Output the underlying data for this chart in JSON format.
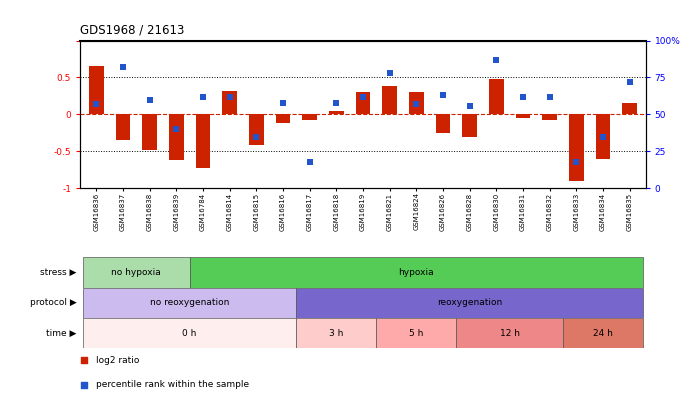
{
  "title": "GDS1968 / 21613",
  "samples": [
    "GSM16836",
    "GSM16837",
    "GSM16838",
    "GSM16839",
    "GSM16784",
    "GSM16814",
    "GSM16815",
    "GSM16816",
    "GSM16817",
    "GSM16818",
    "GSM16819",
    "GSM16821",
    "GSM16824",
    "GSM16826",
    "GSM16828",
    "GSM16830",
    "GSM16831",
    "GSM16832",
    "GSM16833",
    "GSM16834",
    "GSM16835"
  ],
  "log2_ratio": [
    0.65,
    -0.35,
    -0.48,
    -0.62,
    -0.72,
    0.32,
    -0.42,
    -0.12,
    -0.08,
    0.05,
    0.3,
    0.38,
    0.3,
    -0.25,
    -0.3,
    0.48,
    -0.05,
    -0.07,
    -0.9,
    -0.6,
    0.15
  ],
  "percentile_pct": [
    57,
    82,
    60,
    40,
    62,
    62,
    35,
    58,
    18,
    58,
    62,
    78,
    57,
    63,
    56,
    87,
    62,
    62,
    18,
    35,
    72
  ],
  "bar_color": "#cc2200",
  "dot_color": "#2255cc",
  "background_color": "#ffffff",
  "ylim_left": [
    -1,
    1
  ],
  "ylim_right": [
    0,
    100
  ],
  "yticks_left": [
    -1,
    -0.5,
    0,
    0.5,
    1
  ],
  "ytick_labels_left": [
    "-1",
    "-0.5",
    "0",
    "0.5",
    ""
  ],
  "yticks_right": [
    0,
    25,
    50,
    75,
    100
  ],
  "ytick_labels_right": [
    "0",
    "25",
    "50",
    "75",
    "100%"
  ],
  "stress_groups": [
    {
      "label": "no hypoxia",
      "start": 0,
      "end": 4,
      "color": "#aaddaa"
    },
    {
      "label": "hypoxia",
      "start": 4,
      "end": 21,
      "color": "#55cc55"
    }
  ],
  "protocol_groups": [
    {
      "label": "no reoxygenation",
      "start": 0,
      "end": 8,
      "color": "#ccbbee"
    },
    {
      "label": "reoxygenation",
      "start": 8,
      "end": 21,
      "color": "#7766cc"
    }
  ],
  "time_groups": [
    {
      "label": "0 h",
      "start": 0,
      "end": 8,
      "color": "#ffeeee"
    },
    {
      "label": "3 h",
      "start": 8,
      "end": 11,
      "color": "#ffcccc"
    },
    {
      "label": "5 h",
      "start": 11,
      "end": 14,
      "color": "#ffaaaa"
    },
    {
      "label": "12 h",
      "start": 14,
      "end": 18,
      "color": "#ee8888"
    },
    {
      "label": "24 h",
      "start": 18,
      "end": 21,
      "color": "#dd7766"
    }
  ],
  "row_label_names": [
    "stress",
    "protocol",
    "time"
  ],
  "legend_items": [
    {
      "label": "log2 ratio",
      "color": "#cc2200"
    },
    {
      "label": "percentile rank within the sample",
      "color": "#2255cc"
    }
  ]
}
